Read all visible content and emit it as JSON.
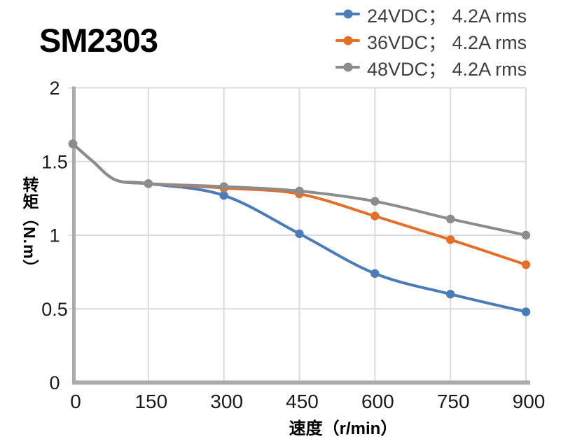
{
  "title": "SM2303",
  "chart_data": {
    "type": "line",
    "title": "SM2303",
    "xlabel": "速度（r/min）",
    "ylabel": "转矩（N.m）",
    "xlim": [
      0,
      900
    ],
    "ylim": [
      0,
      2
    ],
    "x_ticks": [
      0,
      150,
      300,
      450,
      600,
      750,
      900
    ],
    "x_tick_labels": [
      "0",
      "150",
      "300",
      "450",
      "600",
      "750",
      "900"
    ],
    "y_ticks": [
      0,
      0.5,
      1,
      1.5,
      2
    ],
    "y_tick_labels": [
      "0",
      "0.5",
      "1",
      "1.5",
      "2"
    ],
    "grid": true,
    "legend_position": "top-right",
    "marker": "circle",
    "series": [
      {
        "name": "24VDC； 4.2A rms",
        "color": "#4C7CB8",
        "x": [
          0,
          150,
          300,
          450,
          600,
          750,
          900
        ],
        "y": [
          1.62,
          1.35,
          1.27,
          1.01,
          0.74,
          0.6,
          0.48
        ],
        "curve_knee_x": [
          40,
          85
        ],
        "curve_knee_y": [
          1.5,
          1.375
        ]
      },
      {
        "name": "36VDC； 4.2A rms",
        "color": "#E2702B",
        "x": [
          0,
          150,
          300,
          450,
          600,
          750,
          900
        ],
        "y": [
          1.62,
          1.35,
          1.32,
          1.28,
          1.13,
          0.97,
          0.8
        ],
        "curve_knee_x": [
          40,
          85
        ],
        "curve_knee_y": [
          1.5,
          1.375
        ]
      },
      {
        "name": "48VDC； 4.2A rms",
        "color": "#8C8C8C",
        "x": [
          0,
          150,
          300,
          450,
          600,
          750,
          900
        ],
        "y": [
          1.62,
          1.35,
          1.33,
          1.3,
          1.23,
          1.11,
          1.0
        ],
        "curve_knee_x": [
          40,
          85
        ],
        "curve_knee_y": [
          1.5,
          1.375
        ]
      }
    ]
  },
  "colors": {
    "axis": "#ABABAB",
    "gridline": "#DBDBDB",
    "tick_text": "#1a1a1a",
    "legend_text": "#3f3f3f",
    "title_text": "#000000"
  }
}
